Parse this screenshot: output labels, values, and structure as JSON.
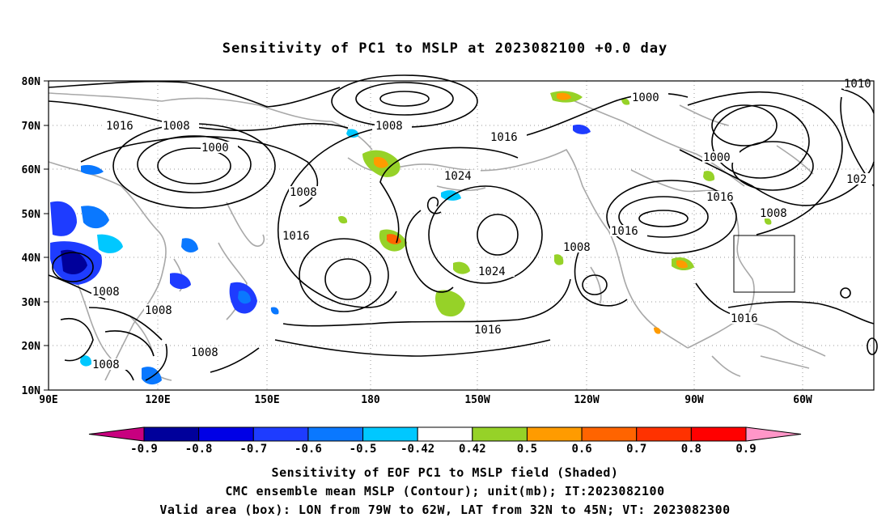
{
  "title": "Sensitivity of PC1 to MSLP at 2023082100 +0.0 day",
  "lat_labels": [
    "80N",
    "70N",
    "60N",
    "50N",
    "40N",
    "30N",
    "20N",
    "10N"
  ],
  "lon_labels": [
    "90E",
    "120E",
    "150E",
    "180",
    "150W",
    "120W",
    "90W",
    "60W"
  ],
  "colorbar": {
    "labels": [
      "-0.9",
      "-0.8",
      "-0.7",
      "-0.6",
      "-0.5",
      "-0.42",
      "0.42",
      "0.5",
      "0.6",
      "0.7",
      "0.8",
      "0.9"
    ],
    "colors": [
      "#c8007f",
      "#00009b",
      "#0000e6",
      "#1e3cff",
      "#0a78ff",
      "#00c8ff",
      "#ffffff",
      "#96d228",
      "#ff9b00",
      "#ff6400",
      "#ff3200",
      "#ff0000",
      "#ff96c8"
    ]
  },
  "contour_labels": [
    "1016",
    "1008",
    "1000",
    "1008",
    "1008",
    "1016",
    "1024",
    "1016",
    "1024",
    "1016",
    "1008",
    "1016",
    "1000",
    "1000",
    "1016",
    "1008",
    "1016",
    "1008",
    "1008",
    "1008",
    "1008",
    "1016",
    "1010",
    "102"
  ],
  "valid_box": {
    "lon_from": "79W",
    "lon_to": "62W",
    "lat_from": "32N",
    "lat_to": "45N"
  },
  "caption": {
    "line1": "Sensitivity of EOF PC1 to MSLP field (Shaded)",
    "line2": "CMC ensemble mean MSLP (Contour); unit(mb); IT:2023082100",
    "line3": "Valid area (box): LON from 79W to 62W, LAT from 32N to 45N; VT: 2023082300"
  }
}
